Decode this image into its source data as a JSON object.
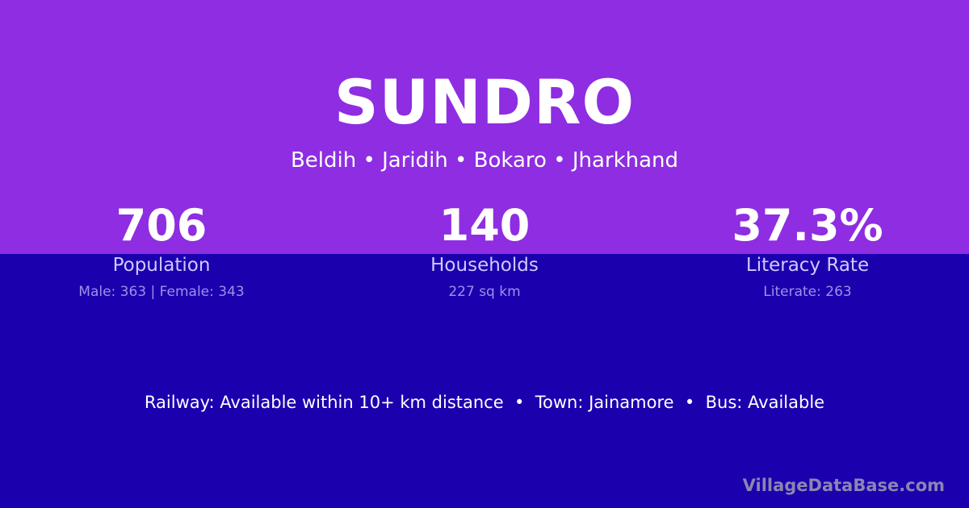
{
  "colors": {
    "top_bg": "#8e2de2",
    "bottom_bg": "#1b00ae"
  },
  "title": "SUNDRO",
  "subtitle": "Beldih • Jaridih • Bokaro • Jharkhand",
  "stats": [
    {
      "value": "706",
      "label": "Population",
      "detail": "Male: 363 | Female: 343"
    },
    {
      "value": "140",
      "label": "Households",
      "detail": "227 sq km"
    },
    {
      "value": "37.3%",
      "label": "Literacy Rate",
      "detail": "Literate: 263"
    }
  ],
  "footer": "Railway: Available within 10+ km distance  •  Town: Jainamore  •  Bus: Available",
  "brand": "VillageDataBase.com"
}
